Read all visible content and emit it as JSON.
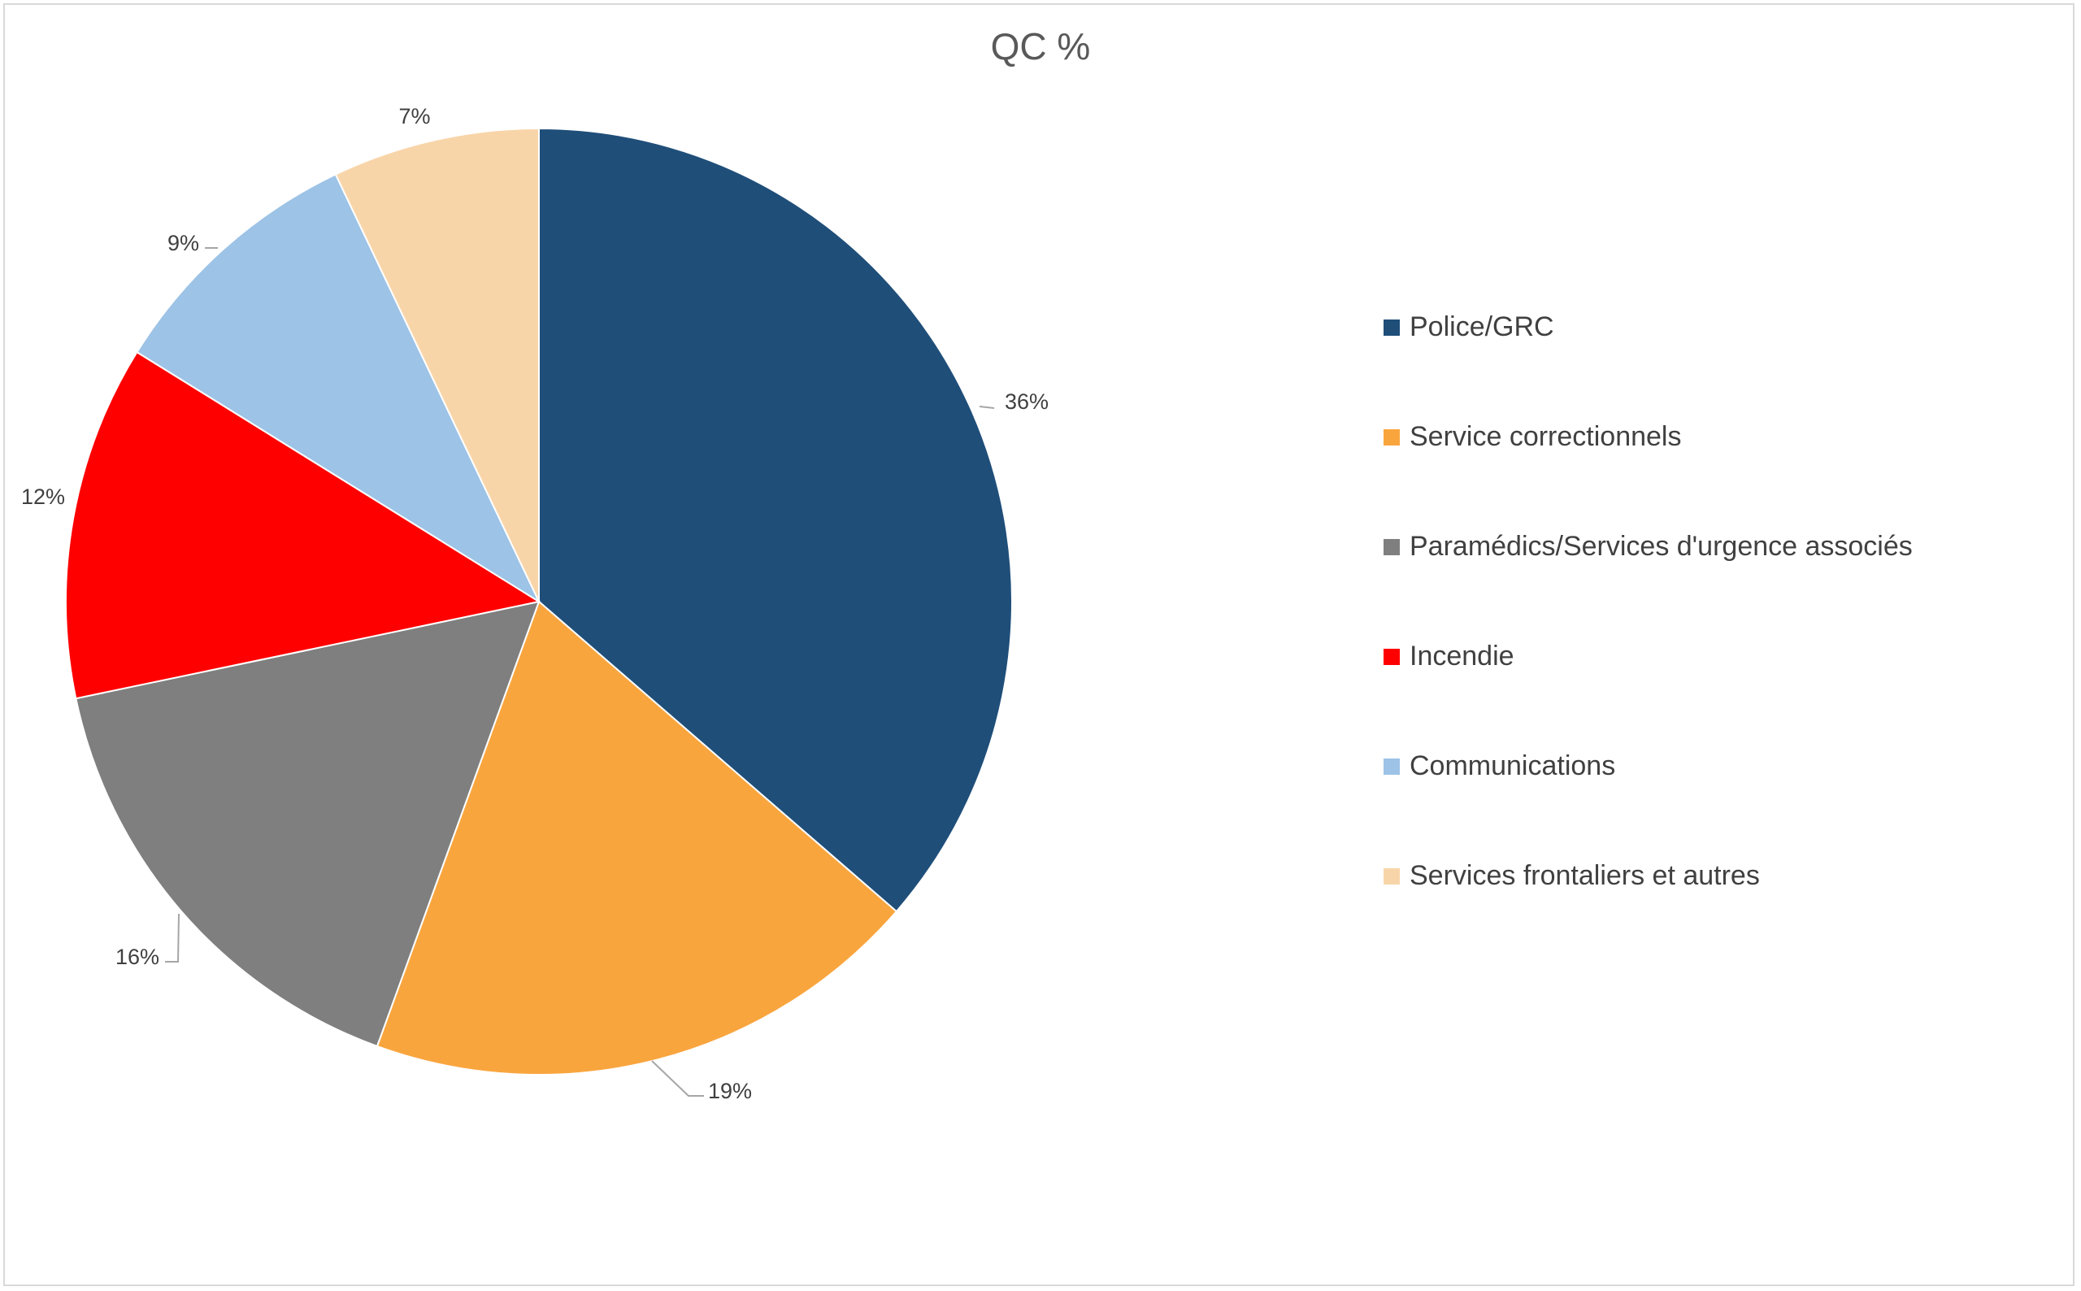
{
  "chart_data": {
    "type": "pie",
    "title": "QC %",
    "categories": [
      "Police/GRC",
      "Service correctionnels",
      "Paramédics/Services d'urgence associés",
      "Incendie",
      "Communications",
      "Services frontaliers et autres"
    ],
    "values": [
      36,
      19,
      16,
      12,
      9,
      7
    ],
    "value_labels": [
      "36%",
      "19%",
      "16%",
      "12%",
      "9%",
      "7%"
    ],
    "colors": [
      "#1F4E79",
      "#F9A53E",
      "#7F7F7F",
      "#FF0000",
      "#9DC3E6",
      "#F8D5A9"
    ],
    "legend_position": "right",
    "grid": false
  }
}
